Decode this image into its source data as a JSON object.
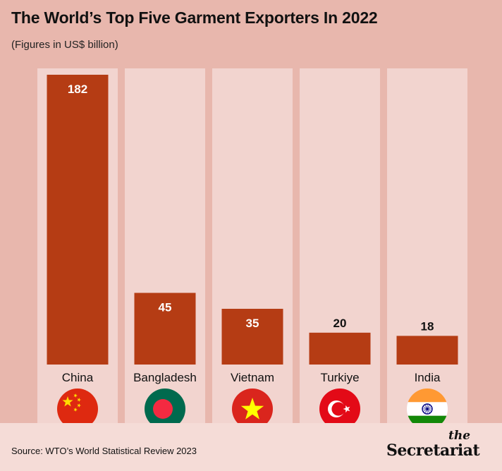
{
  "header": {
    "title": "The World’s Top Five Garment Exporters In 2022",
    "subtitle": "(Figures in US$ billion)"
  },
  "footer": {
    "source": "Source: WTO’s World Statistical Review 2023",
    "logo_the": "the",
    "logo_main": "Secretariat"
  },
  "colors": {
    "background": "#e8b7ad",
    "panel": "#f2d4cf",
    "bar": "#b53c14",
    "footer": "#f5dcd7"
  },
  "chart_data": {
    "type": "bar",
    "title": "The World’s Top Five Garment Exporters In 2022",
    "subtitle": "(Figures in US$ billion)",
    "categories": [
      "China",
      "Bangladesh",
      "Vietnam",
      "Turkiye",
      "India"
    ],
    "values": [
      182,
      45,
      35,
      20,
      18
    ],
    "data_labels": [
      "182",
      "45",
      "35",
      "20",
      "18"
    ],
    "flags": [
      "china-flag-icon",
      "bangladesh-flag-icon",
      "vietnam-flag-icon",
      "turkiye-flag-icon",
      "india-flag-icon"
    ],
    "ylim": [
      0,
      182
    ],
    "grid": false,
    "legend": "none"
  }
}
